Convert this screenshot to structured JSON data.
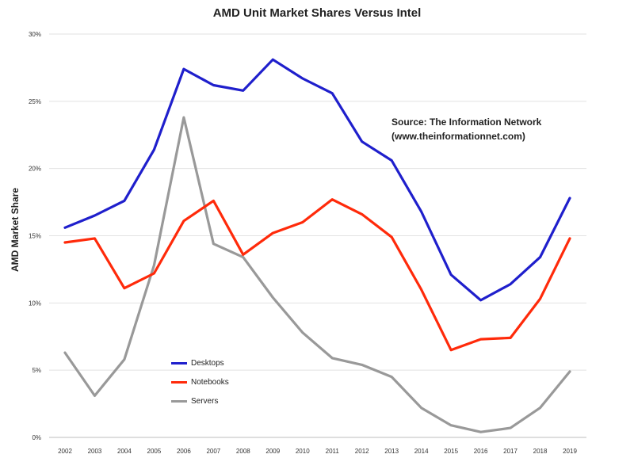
{
  "chart_data": {
    "type": "line",
    "title": "AMD Unit Market Shares Versus Intel",
    "ylabel": "AMD Market Share",
    "xlabel": "",
    "annotation": [
      "Source: The Information Network",
      "(www.theinformationnet.com)"
    ],
    "x": [
      "2002",
      "2003",
      "2004",
      "2005",
      "2006",
      "2007",
      "2008",
      "2009",
      "2010",
      "2011",
      "2012",
      "2013",
      "2014",
      "2015",
      "2016",
      "2017",
      "2018",
      "2019"
    ],
    "ylim": [
      0,
      30
    ],
    "yticks": [
      "0%",
      "5%",
      "10%",
      "15%",
      "20%",
      "25%",
      "30%"
    ],
    "grid": true,
    "legend_position": "lower-left",
    "series": [
      {
        "name": "Desktops",
        "color": "#1f1fcc",
        "values": [
          15.6,
          16.5,
          17.6,
          21.4,
          27.4,
          26.2,
          25.8,
          28.1,
          26.7,
          25.6,
          22.0,
          20.6,
          16.8,
          12.1,
          10.2,
          11.4,
          13.4,
          17.8
        ]
      },
      {
        "name": "Notebooks",
        "color": "#ff2a0a",
        "values": [
          14.5,
          14.8,
          11.1,
          12.2,
          16.1,
          17.6,
          13.6,
          15.2,
          16.0,
          17.7,
          16.6,
          14.9,
          11.0,
          6.5,
          7.3,
          7.4,
          10.3,
          14.8
        ]
      },
      {
        "name": "Servers",
        "color": "#999999",
        "values": [
          6.3,
          3.1,
          5.8,
          12.8,
          23.8,
          14.4,
          13.4,
          10.4,
          7.8,
          5.9,
          5.4,
          4.5,
          2.2,
          0.9,
          0.4,
          0.7,
          2.2,
          4.9
        ]
      }
    ]
  }
}
